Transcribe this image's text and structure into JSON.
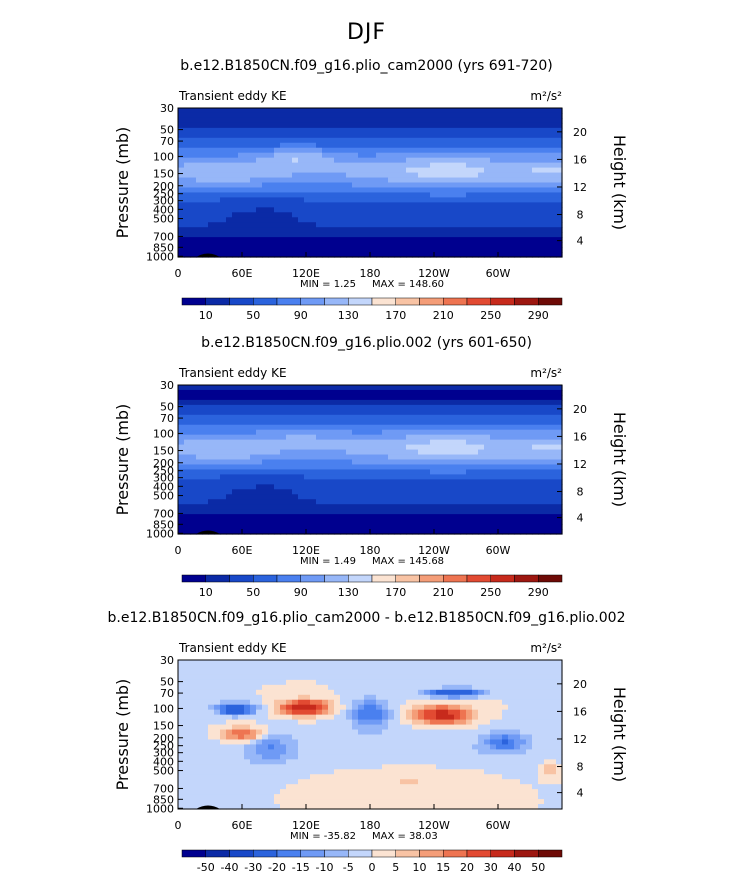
{
  "page_title": "DJF",
  "chart_data": [
    {
      "type": "heatmap",
      "title": "b.e12.B1850CN.f09_g16.plio_cam2000 (yrs 691-720)",
      "subtitle_left": "Transient eddy KE",
      "units": "m²/s²",
      "ylabel": "Pressure (mb)",
      "ylabel_right": "Height (km)",
      "x_ticks": [
        "0",
        "60E",
        "120E",
        "180",
        "120W",
        "60W"
      ],
      "y_ticks": [
        "30",
        "50",
        "70",
        "100",
        "150",
        "200",
        "250",
        "300",
        "400",
        "500",
        "700",
        "850",
        "1000"
      ],
      "y_right_ticks": [
        "20",
        "16",
        "12",
        "8",
        "4"
      ],
      "min_label": "MIN = 1.25",
      "max_label": "MAX = 148.60",
      "min": 1.25,
      "max": 148.6,
      "colorbar_ticks": [
        "10",
        "50",
        "90",
        "130",
        "170",
        "210",
        "250",
        "290"
      ]
    },
    {
      "type": "heatmap",
      "title": "b.e12.B1850CN.f09_g16.plio.002 (yrs 601-650)",
      "subtitle_left": "Transient eddy KE",
      "units": "m²/s²",
      "ylabel": "Pressure (mb)",
      "ylabel_right": "Height (km)",
      "x_ticks": [
        "0",
        "60E",
        "120E",
        "180",
        "120W",
        "60W"
      ],
      "y_ticks": [
        "30",
        "50",
        "70",
        "100",
        "150",
        "200",
        "250",
        "300",
        "400",
        "500",
        "700",
        "850",
        "1000"
      ],
      "y_right_ticks": [
        "20",
        "16",
        "12",
        "8",
        "4"
      ],
      "min_label": "MIN = 1.49",
      "max_label": "MAX = 145.68",
      "min": 1.49,
      "max": 145.68,
      "colorbar_ticks": [
        "10",
        "50",
        "90",
        "130",
        "170",
        "210",
        "250",
        "290"
      ]
    },
    {
      "type": "heatmap",
      "title": "b.e12.B1850CN.f09_g16.plio_cam2000 - b.e12.B1850CN.f09_g16.plio.002",
      "subtitle_left": "Transient eddy KE",
      "units": "m²/s²",
      "ylabel": "Pressure (mb)",
      "ylabel_right": "Height (km)",
      "x_ticks": [
        "0",
        "60E",
        "120E",
        "180",
        "120W",
        "60W"
      ],
      "y_ticks": [
        "30",
        "50",
        "70",
        "100",
        "150",
        "200",
        "250",
        "300",
        "400",
        "500",
        "700",
        "850",
        "1000"
      ],
      "y_right_ticks": [
        "20",
        "16",
        "12",
        "8",
        "4"
      ],
      "min_label": "MIN = -35.82",
      "max_label": "MAX = 38.03",
      "min": -35.82,
      "max": 38.03,
      "colorbar_ticks": [
        "-50",
        "-40",
        "-30",
        "-20",
        "-15",
        "-10",
        "-5",
        "0",
        "5",
        "10",
        "15",
        "20",
        "30",
        "40",
        "50"
      ]
    }
  ],
  "colors": {
    "seq": [
      "#00008f",
      "#0b2aa6",
      "#1848c8",
      "#2b63dd",
      "#4a80ef",
      "#6f9af5",
      "#97b7f8",
      "#c3d6fb",
      "#fbe3d2",
      "#f8c3a4",
      "#f49d78",
      "#ee7451",
      "#e24a32",
      "#c72a1c",
      "#9d1710",
      "#6e0a06"
    ],
    "div": [
      "#00008f",
      "#0b2aa6",
      "#1848c8",
      "#2b63dd",
      "#4a80ef",
      "#6f9af5",
      "#97b7f8",
      "#c3d6fb",
      "#fbe3d2",
      "#f8c3a4",
      "#f49d78",
      "#ee7451",
      "#e24a32",
      "#c72a1c",
      "#9d1710",
      "#6e0a06"
    ]
  }
}
